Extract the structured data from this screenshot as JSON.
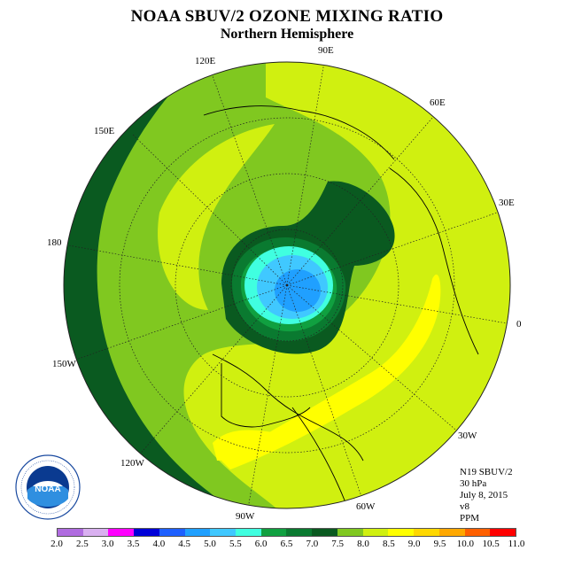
{
  "title": "NOAA SBUV/2 OZONE MIXING RATIO",
  "subtitle": "Northern Hemisphere",
  "longitude_labels": [
    "90E",
    "60E",
    "30E",
    "0",
    "30W",
    "60W",
    "90W",
    "120W",
    "150W",
    "180",
    "150E",
    "120E"
  ],
  "info": {
    "instrument": "N19 SBUV/2",
    "level": "30 hPa",
    "date": "July 8, 2015",
    "version": "v8",
    "units": "PPM"
  },
  "logo": {
    "text": "NOAA",
    "ring_text": "NATIONAL OCEANIC AND ATMOSPHERIC ADMINISTRATION · U.S. DEPARTMENT OF COMMERCE"
  },
  "colorbar": {
    "ticks": [
      "2.0",
      "2.5",
      "3.0",
      "3.5",
      "4.0",
      "4.5",
      "5.0",
      "5.5",
      "6.0",
      "6.5",
      "7.0",
      "7.5",
      "8.0",
      "8.5",
      "9.0",
      "9.5",
      "10.0",
      "10.5",
      "11.0"
    ],
    "colors": [
      "#b06ce0",
      "#d9b0f0",
      "#ff00ff",
      "#0000d8",
      "#1e60ff",
      "#20a0ff",
      "#40c8ff",
      "#40ffe0",
      "#10a040",
      "#0a7a30",
      "#0a5a20",
      "#80c820",
      "#d0f010",
      "#ffff00",
      "#ffd800",
      "#ffa800",
      "#ff6000",
      "#ff0000",
      "#8a4a20"
    ]
  },
  "colors": {
    "ppm_6_0": "#10a040",
    "ppm_6_5": "#0a7a30",
    "ppm_7_0": "#0a5a20",
    "ppm_7_5": "#80c820",
    "ppm_8_0": "#d0f010",
    "ppm_8_5": "#ffff00",
    "ppm_4_5": "#20a0ff",
    "ppm_5_0": "#40c8ff",
    "ppm_5_5": "#40ffe0"
  }
}
